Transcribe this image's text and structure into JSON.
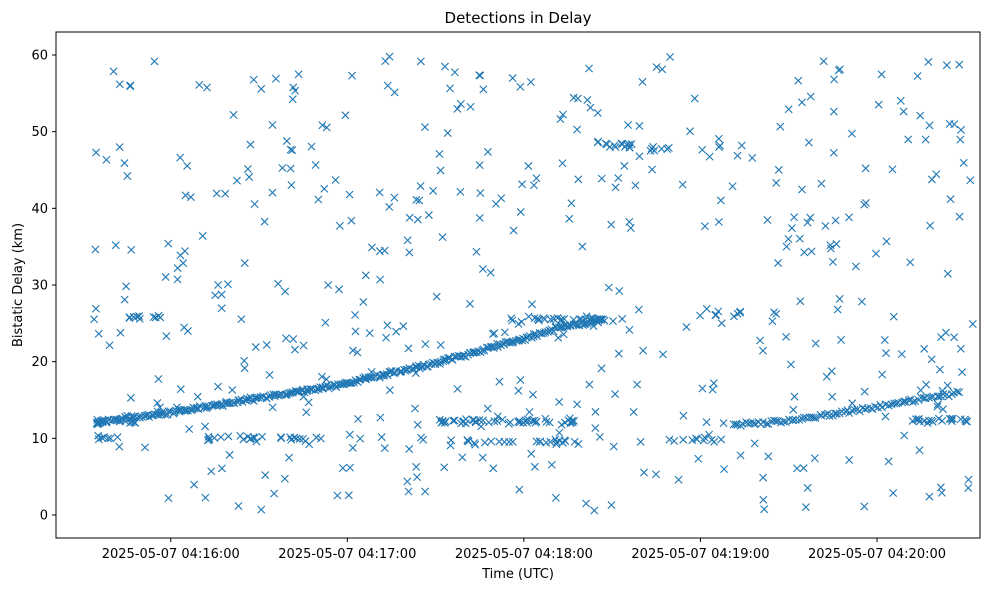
{
  "chart_data": {
    "type": "scatter",
    "title": "Detections in Delay",
    "xlabel": "Time (UTC)",
    "ylabel": "Bistatic Delay (km)",
    "marker": "x",
    "color": "#1f77b4",
    "x_unit": "seconds after 2025-05-07 04:15:00 UTC",
    "xlim": [
      21,
      335
    ],
    "ylim": [
      -3.0,
      63.0
    ],
    "x_ticks": [
      {
        "value": 60,
        "label": "2025-05-07 04:16:00"
      },
      {
        "value": 120,
        "label": "2025-05-07 04:17:00"
      },
      {
        "value": 180,
        "label": "2025-05-07 04:18:00"
      },
      {
        "value": 240,
        "label": "2025-05-07 04:19:00"
      },
      {
        "value": 300,
        "label": "2025-05-07 04:20:00"
      }
    ],
    "y_ticks": [
      0,
      10,
      20,
      30,
      40,
      50,
      60
    ],
    "series": [
      {
        "name": "main-track-1",
        "description": "rising track",
        "x_range": [
          34,
          207
        ],
        "points": [
          [
            34,
            12.0
          ],
          [
            60,
            13.4
          ],
          [
            90,
            15.2
          ],
          [
            120,
            17.2
          ],
          [
            150,
            19.8
          ],
          [
            175,
            22.5
          ],
          [
            190,
            24.2
          ],
          [
            207,
            25.5
          ]
        ],
        "count": 320
      },
      {
        "name": "main-track-2",
        "description": "second rising track",
        "x_range": [
          251,
          328
        ],
        "points": [
          [
            251,
            11.8
          ],
          [
            270,
            12.2
          ],
          [
            290,
            13.5
          ],
          [
            310,
            14.8
          ],
          [
            328,
            16.0
          ]
        ],
        "count": 90
      },
      {
        "name": "line-12",
        "description": "flat clusters near 12 km",
        "segments": [
          [
            34,
            48,
            12.2
          ],
          [
            150,
            200,
            12.2
          ],
          [
            310,
            332,
            12.3
          ]
        ],
        "count": 80
      },
      {
        "name": "line-10",
        "description": "flat clusters near 10 km",
        "segments": [
          [
            35,
            48,
            10.0
          ],
          [
            70,
            115,
            10.0
          ],
          [
            155,
            200,
            9.6
          ],
          [
            229,
            248,
            9.8
          ]
        ],
        "count": 70
      },
      {
        "name": "line-26",
        "description": "flat clusters near 26 km",
        "segments": [
          [
            45,
            60,
            25.8
          ],
          [
            175,
            215,
            25.6
          ],
          [
            245,
            255,
            26.3
          ]
        ],
        "count": 45
      },
      {
        "name": "line-48",
        "description": "flat cluster near 48 km",
        "segments": [
          [
            205,
            218,
            48.2
          ],
          [
            223,
            230,
            47.8
          ]
        ],
        "count": 20
      },
      {
        "name": "noise",
        "description": "scattered detections across the full plot",
        "x_range": [
          34,
          333
        ],
        "y_range": [
          0.5,
          60.0
        ],
        "count": 470
      }
    ]
  }
}
